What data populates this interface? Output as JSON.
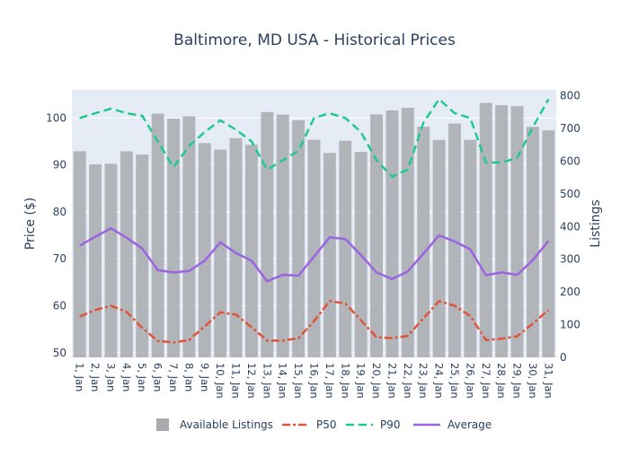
{
  "chart_data": {
    "type": "bar+line",
    "title": "Baltimore, MD USA - Historical Prices",
    "categories": [
      "1, Jan",
      "2, Jan",
      "3, Jan",
      "4, Jan",
      "5, Jan",
      "6, Jan",
      "7, Jan",
      "8, Jan",
      "9, Jan",
      "10, Jan",
      "11, Jan",
      "12, Jan",
      "13, Jan",
      "14, Jan",
      "15, Jan",
      "16, Jan",
      "17, Jan",
      "18, Jan",
      "19, Jan",
      "20, Jan",
      "21, Jan",
      "22, Jan",
      "23, Jan",
      "24, Jan",
      "25, Jan",
      "26, Jan",
      "27, Jan",
      "28, Jan",
      "29, Jan",
      "30, Jan",
      "31, Jan"
    ],
    "y_left": {
      "label": "Price ($)",
      "range": [
        49,
        106
      ],
      "ticks": [
        50,
        60,
        70,
        80,
        90,
        100
      ]
    },
    "y_right": {
      "label": "Listings",
      "range": [
        0,
        818
      ],
      "ticks": [
        0,
        100,
        200,
        300,
        400,
        500,
        600,
        700,
        800
      ]
    },
    "bars": {
      "name": "Available Listings",
      "axis": "right",
      "color": "#a8aaae",
      "values": [
        630,
        590,
        592,
        630,
        620,
        745,
        730,
        737,
        655,
        635,
        670,
        650,
        750,
        742,
        725,
        665,
        625,
        662,
        628,
        743,
        755,
        763,
        705,
        665,
        715,
        665,
        778,
        771,
        768,
        705,
        694
      ]
    },
    "lines": [
      {
        "name": "P50",
        "axis": "left",
        "color": "#e0553a",
        "dash": "dashdot",
        "values": [
          57.7,
          59.1,
          60.0,
          58.7,
          55.3,
          52.5,
          52.2,
          52.7,
          55.6,
          58.6,
          58.1,
          55.4,
          52.6,
          52.6,
          53.1,
          56.7,
          61.0,
          60.5,
          56.9,
          53.3,
          53.1,
          53.6,
          57.3,
          61.0,
          60.0,
          57.8,
          52.7,
          53.0,
          53.5,
          56.2,
          59.1
        ]
      },
      {
        "name": "P90",
        "axis": "left",
        "color": "#22c98f",
        "dash": "dash",
        "values": [
          100.0,
          101.0,
          102.0,
          101.0,
          100.5,
          95.0,
          89.5,
          94.0,
          97.0,
          99.5,
          97.5,
          95.0,
          89.0,
          91.0,
          93.0,
          100.0,
          101.0,
          100.0,
          97.0,
          91.0,
          87.5,
          89.0,
          99.0,
          104.0,
          101.0,
          100.0,
          90.5,
          90.5,
          91.5,
          98.0,
          104.0
        ]
      },
      {
        "name": "Average",
        "axis": "left",
        "color": "#9b64e0",
        "dash": "solid",
        "values": [
          72.8,
          74.7,
          76.5,
          74.5,
          72.2,
          67.6,
          67.1,
          67.4,
          69.6,
          73.5,
          71.2,
          69.6,
          65.2,
          66.6,
          66.4,
          70.5,
          74.6,
          74.2,
          70.8,
          67.1,
          65.7,
          67.3,
          71.1,
          75.0,
          73.7,
          72.0,
          66.5,
          67.1,
          66.6,
          69.7,
          73.8
        ]
      }
    ],
    "legend": [
      "Available Listings",
      "P50",
      "P90",
      "Average"
    ],
    "legend_position": "bottom",
    "plot_bgcolor": "#e5ecf6",
    "grid": true
  }
}
